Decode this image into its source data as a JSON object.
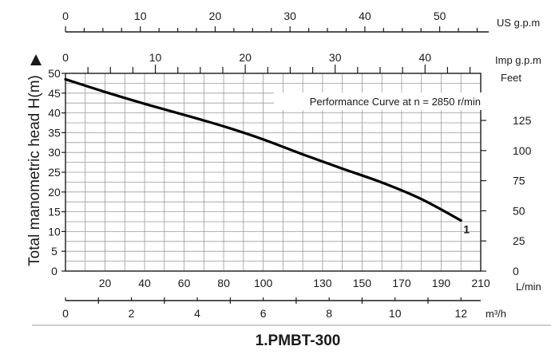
{
  "chart_data": {
    "type": "line",
    "title": "Performance Curve at n = 2850 r/min",
    "ylabel": "Total manometric head H(m)",
    "model_label": "1.PMBT-300",
    "grid": true,
    "xlim": [
      0,
      210
    ],
    "ylim": [
      0,
      50
    ],
    "series": [
      {
        "name": "1",
        "color": "#000000",
        "x": [
          0,
          20,
          40,
          60,
          80,
          100,
          120,
          140,
          160,
          180,
          200
        ],
        "y": [
          48.5,
          45.3,
          42.3,
          39.5,
          36.6,
          33.3,
          29.5,
          25.9,
          22.4,
          18.2,
          12.8
        ]
      }
    ],
    "axes": {
      "us_gpm": {
        "unit": "US g.p.m",
        "ticks": [
          "0",
          "10",
          "20",
          "30",
          "40",
          "50"
        ],
        "values": [
          0,
          10,
          20,
          30,
          40,
          50
        ]
      },
      "imp_gpm": {
        "unit": "Imp g.p.m",
        "ticks": [
          "0",
          "10",
          "20",
          "30",
          "40"
        ],
        "values": [
          0,
          10,
          20,
          30,
          40
        ]
      },
      "lmin": {
        "unit": "L/min",
        "ticks": [
          "20",
          "40",
          "60",
          "80",
          "100",
          "130",
          "150",
          "170",
          "190",
          "210"
        ],
        "values": [
          20,
          40,
          60,
          80,
          100,
          130,
          150,
          170,
          190,
          210
        ]
      },
      "m3h": {
        "unit": "m³/h",
        "ticks": [
          "0",
          "2",
          "4",
          "6",
          "8",
          "10",
          "12"
        ],
        "values": [
          0,
          2,
          4,
          6,
          8,
          10,
          12
        ]
      },
      "head_m": {
        "ticks": [
          "0",
          "5",
          "10",
          "15",
          "20",
          "25",
          "30",
          "35",
          "40",
          "45",
          "50"
        ],
        "values": [
          0,
          5,
          10,
          15,
          20,
          25,
          30,
          35,
          40,
          45,
          50
        ]
      },
      "feet": {
        "unit": "Feet",
        "ticks": [
          "0",
          "25",
          "50",
          "75",
          "100",
          "125"
        ],
        "values": [
          0,
          25,
          50,
          75,
          100,
          125
        ]
      }
    }
  }
}
